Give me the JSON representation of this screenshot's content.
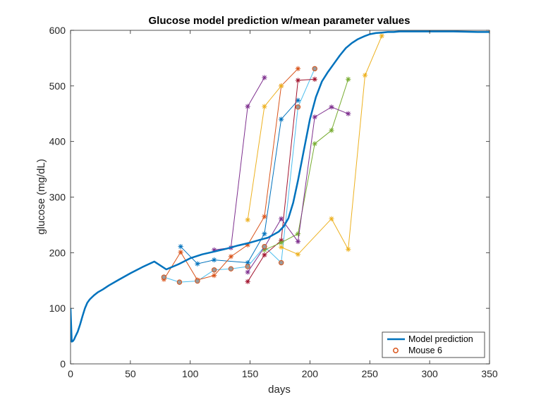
{
  "chart_data": {
    "type": "line",
    "title": "Glucose model prediction w/mean parameter values",
    "xlabel": "days",
    "ylabel": "glucose (mg/dL)",
    "xlim": [
      0,
      350
    ],
    "ylim": [
      0,
      600
    ],
    "xticks": [
      0,
      50,
      100,
      150,
      200,
      250,
      300,
      350
    ],
    "yticks": [
      0,
      100,
      200,
      300,
      400,
      500,
      600
    ],
    "grid": false,
    "legend_position": "bottom-right",
    "legend": [
      {
        "label": "Model prediction",
        "style": "line",
        "color": "#0072BD"
      },
      {
        "label": "Mouse 6",
        "style": "circle",
        "color": "#D95319"
      }
    ],
    "model": {
      "color": "#0072BD",
      "x": [
        0,
        1,
        2,
        3,
        4,
        6,
        8,
        10,
        12,
        14,
        16,
        18,
        20,
        23,
        27,
        32,
        40,
        50,
        60,
        70,
        80,
        90,
        100,
        110,
        120,
        130,
        140,
        150,
        158,
        165,
        170,
        174,
        178,
        182,
        186,
        190,
        195,
        200,
        205,
        210,
        215,
        220,
        225,
        230,
        235,
        240,
        245,
        250,
        255,
        260,
        265,
        270,
        275,
        280,
        290,
        300,
        320,
        340,
        350
      ],
      "y": [
        100,
        40,
        41,
        44,
        49,
        58,
        71,
        86,
        100,
        110,
        116,
        120,
        124,
        129,
        134,
        141,
        151,
        163,
        174,
        184,
        170,
        179,
        190,
        197,
        202,
        207,
        213,
        218,
        223,
        227,
        233,
        238,
        247,
        262,
        290,
        330,
        385,
        440,
        480,
        508,
        525,
        540,
        555,
        568,
        577,
        584,
        589,
        593,
        595,
        596,
        597,
        597,
        598,
        598,
        598,
        598,
        598,
        597,
        597
      ]
    },
    "series": [
      {
        "color": "#4DBEEE",
        "x": [
          78,
          91,
          106,
          120,
          134,
          148,
          162,
          176,
          190,
          204
        ],
        "y": [
          156,
          147,
          149,
          169,
          171,
          175,
          211,
          182,
          462,
          531
        ]
      },
      {
        "color": "#0072BD",
        "x": [
          92,
          106,
          120,
          148,
          162,
          176,
          190
        ],
        "y": [
          211,
          180,
          187,
          182,
          234,
          440,
          474
        ]
      },
      {
        "color": "#D95319",
        "x": [
          78,
          92,
          106,
          120,
          134,
          148,
          162,
          176,
          190
        ],
        "y": [
          152,
          201,
          151,
          159,
          193,
          214,
          265,
          500,
          531
        ]
      },
      {
        "color": "#EDB120",
        "x": [
          148,
          162,
          176
        ],
        "y": [
          259,
          463,
          500
        ]
      },
      {
        "color": "#7E2F8E",
        "x": [
          120,
          134,
          148,
          162
        ],
        "y": [
          205,
          209,
          463,
          515
        ]
      },
      {
        "color": "#A2142F",
        "x": [
          148,
          162,
          176,
          190,
          204
        ],
        "y": [
          148,
          196,
          222,
          510,
          512
        ]
      },
      {
        "color": "#77AC30",
        "x": [
          162,
          176,
          190,
          204,
          218,
          232
        ],
        "y": [
          205,
          218,
          234,
          396,
          420,
          512
        ]
      },
      {
        "color": "#7E2F8E",
        "x": [
          148,
          162,
          176,
          190,
          204,
          218,
          232
        ],
        "y": [
          165,
          210,
          261,
          220,
          444,
          462,
          450
        ]
      },
      {
        "color": "#EDB120",
        "x": [
          176,
          190,
          218,
          232,
          246,
          260
        ],
        "y": [
          210,
          197,
          261,
          206,
          519,
          590
        ]
      }
    ],
    "mouse6_markers": {
      "color": "#D95319",
      "x": [
        78,
        91,
        106,
        120,
        134,
        148,
        162,
        176,
        190,
        204
      ],
      "y": [
        156,
        147,
        149,
        169,
        171,
        175,
        211,
        182,
        462,
        531
      ]
    }
  }
}
